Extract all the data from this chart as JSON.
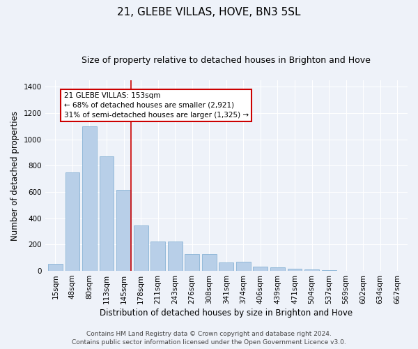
{
  "title": "21, GLEBE VILLAS, HOVE, BN3 5SL",
  "subtitle": "Size of property relative to detached houses in Brighton and Hove",
  "xlabel": "Distribution of detached houses by size in Brighton and Hove",
  "ylabel": "Number of detached properties",
  "categories": [
    "15sqm",
    "48sqm",
    "80sqm",
    "113sqm",
    "145sqm",
    "178sqm",
    "211sqm",
    "243sqm",
    "276sqm",
    "308sqm",
    "341sqm",
    "374sqm",
    "406sqm",
    "439sqm",
    "471sqm",
    "504sqm",
    "537sqm",
    "569sqm",
    "602sqm",
    "634sqm",
    "667sqm"
  ],
  "values": [
    55,
    750,
    1100,
    870,
    615,
    345,
    225,
    225,
    130,
    130,
    65,
    70,
    30,
    25,
    15,
    10,
    5,
    2,
    0,
    1,
    0
  ],
  "bar_color": "#b8cfe8",
  "bar_edge_color": "#7aaad0",
  "vline_color": "#cc0000",
  "vline_x": 4.43,
  "annotation_title": "21 GLEBE VILLAS: 153sqm",
  "annotation_line1": "← 68% of detached houses are smaller (2,921)",
  "annotation_line2": "31% of semi-detached houses are larger (1,325) →",
  "annotation_box_facecolor": "#ffffff",
  "annotation_box_edgecolor": "#cc0000",
  "footer1": "Contains HM Land Registry data © Crown copyright and database right 2024.",
  "footer2": "Contains public sector information licensed under the Open Government Licence v3.0.",
  "ylim": [
    0,
    1450
  ],
  "background_color": "#eef2f9",
  "grid_color": "#ffffff",
  "title_fontsize": 11,
  "subtitle_fontsize": 9,
  "axis_label_fontsize": 8.5,
  "tick_fontsize": 7.5,
  "footer_fontsize": 6.5
}
